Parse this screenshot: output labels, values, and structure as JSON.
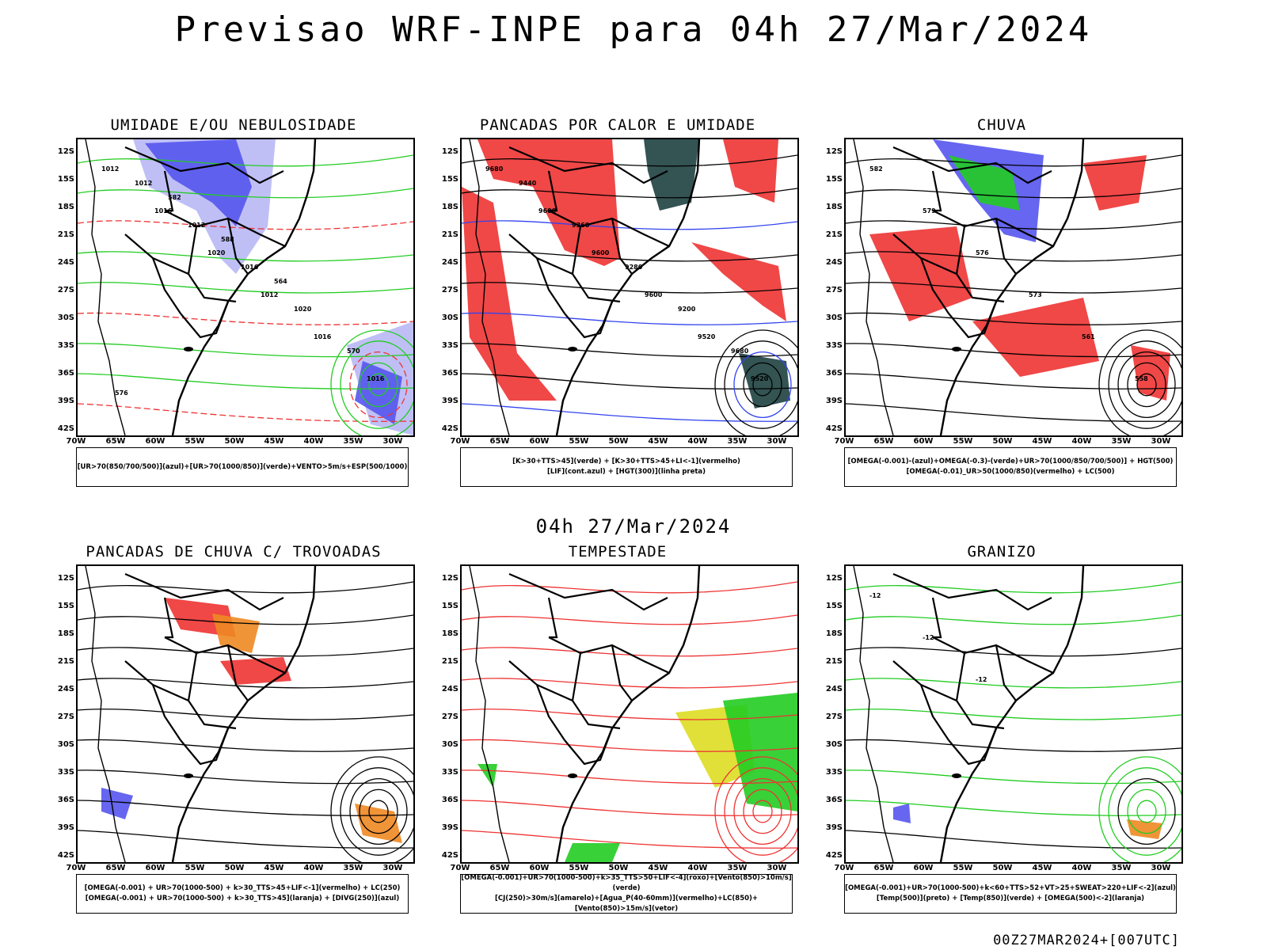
{
  "title": "Previsao WRF-INPE  para 04h 27/Mar/2024",
  "mid_time": "04h 27/Mar/2024",
  "footer": "00Z27MAR2024+[007UTC]",
  "colors": {
    "blue": "#5555ee",
    "lightblue": "#b8b8f5",
    "green": "#22cc22",
    "red": "#ee3333",
    "darkteal": "#1e4040",
    "orange": "#ee8822",
    "yellow": "#dddd22"
  },
  "chart_data": [
    {
      "type": "map",
      "title": "UMIDADE E/OU NEBULOSIDADE",
      "lat_ticks": [
        "12S",
        "15S",
        "18S",
        "21S",
        "24S",
        "27S",
        "30S",
        "33S",
        "36S",
        "39S",
        "42S"
      ],
      "lon_ticks": [
        "70W",
        "65W",
        "60W",
        "55W",
        "50W",
        "45W",
        "40W",
        "35W",
        "30W"
      ],
      "legend": [
        "[UR>70(850/700/500)](azul)+[UR>70(1000/850)](verde)+VENTO>5m/s+ESP(500/1000)"
      ],
      "labels": [
        "1012",
        "1016",
        "1020",
        "1012",
        "1016",
        "1016",
        "1012",
        "1012",
        "1016",
        "1020",
        "570",
        "576",
        "582",
        "588",
        "564"
      ]
    },
    {
      "type": "map",
      "title": "PANCADAS POR CALOR E UMIDADE",
      "lat_ticks": [
        "12S",
        "15S",
        "18S",
        "21S",
        "24S",
        "27S",
        "30S",
        "33S",
        "36S",
        "39S",
        "42S"
      ],
      "lon_ticks": [
        "70W",
        "65W",
        "60W",
        "55W",
        "50W",
        "45W",
        "40W",
        "35W",
        "30W"
      ],
      "legend": [
        "[K>30+TTS>45](verde) + [K>30+TTS>45+LI<-1](vermelho)",
        "[LIF](cont.azul) + [HGT(300)](linha preta)"
      ],
      "labels": [
        "9680",
        "9600",
        "9600",
        "9600",
        "9520",
        "9520",
        "9440",
        "9360",
        "9280",
        "9200",
        "9680"
      ]
    },
    {
      "type": "map",
      "title": "CHUVA",
      "lat_ticks": [
        "12S",
        "15S",
        "18S",
        "21S",
        "24S",
        "27S",
        "30S",
        "33S",
        "36S",
        "39S",
        "42S"
      ],
      "lon_ticks": [
        "70W",
        "65W",
        "60W",
        "55W",
        "50W",
        "45W",
        "40W",
        "35W",
        "30W"
      ],
      "legend": [
        "[OMEGA(-0.001)-(azul)+OMEGA(-0.3)-(verde)+UR>70(1000/850/700/500)] + HGT(500)",
        "[OMEGA(-0.01)_UR>50(1000/850)(vermelho) + LC(500)"
      ],
      "labels": [
        "582",
        "579",
        "576",
        "573",
        "561",
        "558"
      ]
    },
    {
      "type": "map",
      "title": "PANCADAS DE CHUVA C/ TROVOADAS",
      "lat_ticks": [
        "12S",
        "15S",
        "18S",
        "21S",
        "24S",
        "27S",
        "30S",
        "33S",
        "36S",
        "39S",
        "42S"
      ],
      "lon_ticks": [
        "70W",
        "65W",
        "60W",
        "55W",
        "50W",
        "45W",
        "40W",
        "35W",
        "30W"
      ],
      "legend": [
        "[OMEGA(-0.001) + UR>70(1000-500) + k>30_TTS>45+LIF<-1](vermelho) + LC(250)",
        "[OMEGA(-0.001) + UR>70(1000-500) + k>30_TTS>45](laranja) + [DIVG(250)](azul)"
      ],
      "labels": []
    },
    {
      "type": "map",
      "title": "TEMPESTADE",
      "lat_ticks": [
        "12S",
        "15S",
        "18S",
        "21S",
        "24S",
        "27S",
        "30S",
        "33S",
        "36S",
        "39S",
        "42S"
      ],
      "lon_ticks": [
        "70W",
        "65W",
        "60W",
        "55W",
        "50W",
        "45W",
        "40W",
        "35W",
        "30W"
      ],
      "legend": [
        "[OMEGA(-0.001)+UR>70(1000-500)+k>35_TTS>50+LIF<-4](roxo)+[Vento(850)>10m/s](verde)",
        "[CJ(250)>30m/s](amarelo)+[Agua_P(40-60mm)](vermelho)+LC(850)+[Vento(850)>15m/s](vetor)"
      ],
      "labels": []
    },
    {
      "type": "map",
      "title": "GRANIZO",
      "lat_ticks": [
        "12S",
        "15S",
        "18S",
        "21S",
        "24S",
        "27S",
        "30S",
        "33S",
        "36S",
        "39S",
        "42S"
      ],
      "lon_ticks": [
        "70W",
        "65W",
        "60W",
        "55W",
        "50W",
        "45W",
        "40W",
        "35W",
        "30W"
      ],
      "legend": [
        "[OMEGA(-0.001)+UR>70(1000-500)+k<60+TTS>52+VT>25+SWEAT>220+LIF<-2](azul)",
        "[Temp(500)](preto) + [Temp(850)](verde) + [OMEGA(500)<-2](laranja)"
      ],
      "labels": [
        "-12",
        "-12",
        "-12"
      ]
    }
  ]
}
